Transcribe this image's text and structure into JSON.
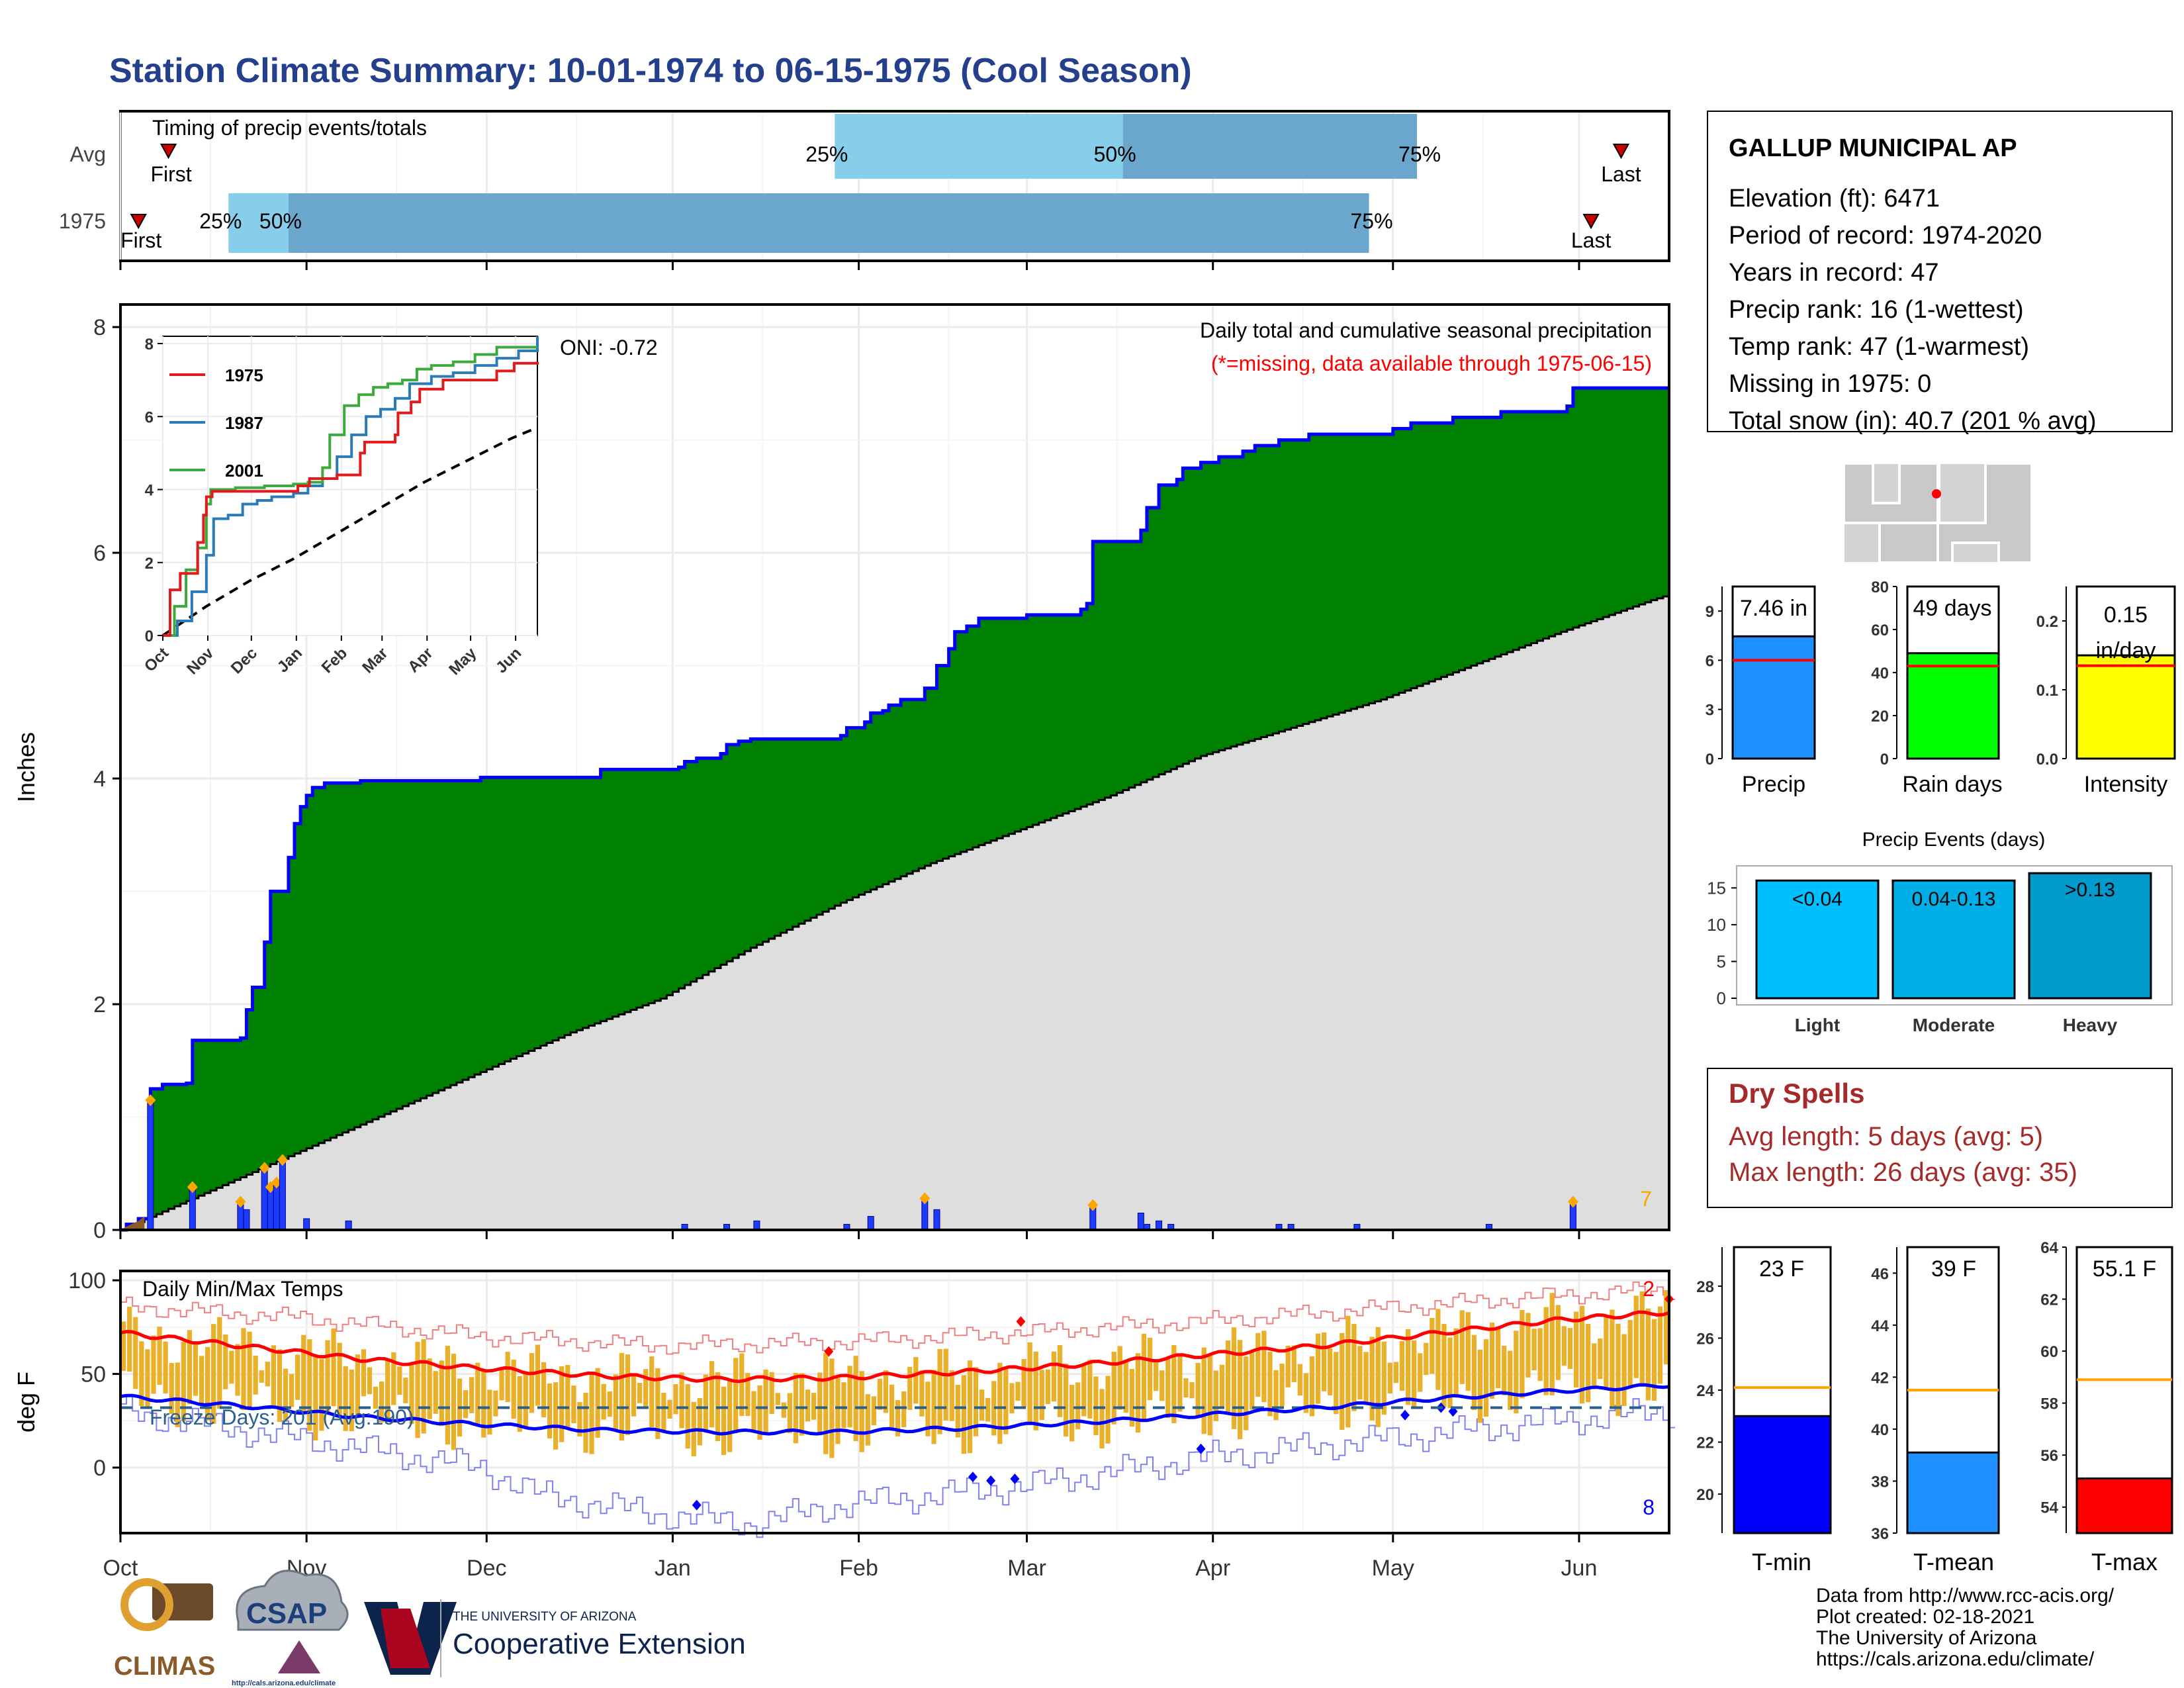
{
  "title": "Station Climate Summary: 10-01-1974 to 06-15-1975 (Cool Season)",
  "colors": {
    "title": "#243F8C",
    "green": "#008000",
    "gray_area": "#DEDEDE",
    "blue_line": "#0000FF",
    "q_light": "#87CEEB",
    "q_dark": "#6BA6CD",
    "red": "#FF0000",
    "orange": "#FFA500",
    "gold": "#EBB02A",
    "dry_red": "#A52A2A"
  },
  "timing": {
    "label": "Timing of precip events/totals",
    "rows": [
      {
        "name": "Avg",
        "first": "First",
        "last": "Last",
        "q25": "25%",
        "q50": "50%",
        "q75": "75%"
      },
      {
        "name": "1975",
        "first": "First",
        "last": "Last",
        "q25": "25%",
        "q50": "50%",
        "q75": "75%"
      }
    ]
  },
  "precip_panel": {
    "ylabel": "Inches",
    "yticks": [
      "0",
      "2",
      "4",
      "6",
      "8"
    ],
    "oni": "ONI: -0.72",
    "legend_line1": "Daily total and cumulative seasonal precipitation",
    "legend_line2": "(*=missing, data available through 1975-06-15)",
    "corner_count": "7",
    "inset": {
      "series": [
        "1975",
        "1987",
        "2001"
      ],
      "yticks": [
        "0",
        "2",
        "4",
        "6",
        "8"
      ],
      "xticks": [
        "Oct",
        "Nov",
        "Dec",
        "Jan",
        "Feb",
        "Mar",
        "Apr",
        "May",
        "Jun"
      ]
    }
  },
  "temp_panel": {
    "ylabel": "deg F",
    "yticks": [
      "0",
      "50",
      "100"
    ],
    "title": "Daily Min/Max Temps",
    "freeze": "Freeze Days: 201 (Avg:190)",
    "top_count": "2",
    "bottom_count": "8"
  },
  "months": [
    "Oct",
    "Nov",
    "Dec",
    "Jan",
    "Feb",
    "Mar",
    "Apr",
    "May",
    "Jun"
  ],
  "station": {
    "name": "GALLUP MUNICIPAL AP",
    "lines": [
      "Elevation (ft): 6471",
      "Period of record: 1974-2020",
      "Years in record: 47",
      "Precip rank: 16 (1-wettest)",
      "Temp rank: 47 (1-warmest)",
      "Missing in 1975: 0",
      "Total snow (in): 40.7 (201 % avg)"
    ]
  },
  "summary_bars": [
    {
      "label": "Precip",
      "value_text": "7.46 in",
      "yticks": [
        "0",
        "3",
        "6",
        "9"
      ]
    },
    {
      "label": "Rain days",
      "value_text": "49 days",
      "yticks": [
        "0",
        "20",
        "40",
        "60",
        "80"
      ]
    },
    {
      "label": "Intensity",
      "value_text1": "0.15",
      "value_text2": "in/day",
      "yticks": [
        "0.0",
        "0.1",
        "0.2"
      ]
    }
  ],
  "events": {
    "title": "Precip Events (days)",
    "yticks": [
      "0",
      "5",
      "10",
      "15"
    ],
    "bars": [
      {
        "label": "Light",
        "range": "<0.04"
      },
      {
        "label": "Moderate",
        "range": "0.04-0.13"
      },
      {
        "label": "Heavy",
        "range": ">0.13"
      }
    ]
  },
  "dry_spells": {
    "title": "Dry Spells",
    "avg": "Avg length: 5 days (avg: 5)",
    "max": "Max length: 26 days (avg: 35)"
  },
  "temp_bars": [
    {
      "label": "T-min",
      "value_text": "23 F",
      "yticks": [
        "20",
        "22",
        "24",
        "26",
        "28"
      ]
    },
    {
      "label": "T-mean",
      "value_text": "39 F",
      "yticks": [
        "36",
        "38",
        "40",
        "42",
        "44",
        "46"
      ]
    },
    {
      "label": "T-max",
      "value_text": "55.1 F",
      "yticks": [
        "54",
        "56",
        "58",
        "60",
        "62",
        "64"
      ]
    }
  ],
  "footer": [
    "Data from http://www.rcc-acis.org/",
    "Plot created: 02-18-2021",
    "The University of Arizona",
    "https://cals.arizona.edu/climate/"
  ],
  "logos": {
    "climas": "CLIMAS",
    "csap": "CSAP",
    "csap_url": "http://cals.arizona.edu/climate",
    "ua_small": "THE UNIVERSITY OF ARIZONA",
    "ua_big": "Cooperative Extension"
  },
  "chart_data": [
    {
      "type": "bar",
      "name": "timing",
      "x_unit": "day of season",
      "rows": [
        {
          "name": "Avg",
          "first": 8,
          "q25": 119,
          "q50": 167,
          "q75": 216,
          "last": 250
        },
        {
          "name": "1975",
          "first": 3,
          "q25": 18,
          "q50": 28,
          "q75": 208,
          "last": 245
        }
      ]
    },
    {
      "type": "area",
      "name": "cumulative precipitation",
      "ylim": [
        0,
        8.2
      ],
      "avg_cum_points": [
        [
          0,
          0
        ],
        [
          15,
          0.35
        ],
        [
          30,
          0.7
        ],
        [
          45,
          1.05
        ],
        [
          60,
          1.4
        ],
        [
          75,
          1.75
        ],
        [
          90,
          2.05
        ],
        [
          105,
          2.5
        ],
        [
          120,
          2.9
        ],
        [
          135,
          3.25
        ],
        [
          150,
          3.55
        ],
        [
          165,
          3.85
        ],
        [
          180,
          4.2
        ],
        [
          195,
          4.45
        ],
        [
          210,
          4.7
        ],
        [
          225,
          5.0
        ],
        [
          240,
          5.3
        ],
        [
          255,
          5.58
        ],
        [
          258,
          5.63
        ]
      ],
      "cum_1975_steps": [
        [
          0,
          0
        ],
        [
          1,
          0.05
        ],
        [
          3,
          0.1
        ],
        [
          5,
          1.25
        ],
        [
          7,
          1.29
        ],
        [
          11,
          1.3
        ],
        [
          12,
          1.68
        ],
        [
          20,
          1.7
        ],
        [
          21,
          1.95
        ],
        [
          22,
          2.15
        ],
        [
          24,
          2.55
        ],
        [
          25,
          3.0
        ],
        [
          28,
          3.3
        ],
        [
          29,
          3.6
        ],
        [
          30,
          3.75
        ],
        [
          31,
          3.85
        ],
        [
          32,
          3.92
        ],
        [
          34,
          3.96
        ],
        [
          40,
          3.98
        ],
        [
          60,
          4.01
        ],
        [
          80,
          4.08
        ],
        [
          93,
          4.1
        ],
        [
          94,
          4.15
        ],
        [
          96,
          4.18
        ],
        [
          100,
          4.22
        ],
        [
          101,
          4.3
        ],
        [
          103,
          4.33
        ],
        [
          105,
          4.35
        ],
        [
          120,
          4.38
        ],
        [
          121,
          4.45
        ],
        [
          124,
          4.5
        ],
        [
          125,
          4.58
        ],
        [
          127,
          4.6
        ],
        [
          128,
          4.65
        ],
        [
          130,
          4.7
        ],
        [
          134,
          4.8
        ],
        [
          136,
          5.0
        ],
        [
          138,
          5.15
        ],
        [
          139,
          5.3
        ],
        [
          141,
          5.35
        ],
        [
          143,
          5.42
        ],
        [
          151,
          5.45
        ],
        [
          160,
          5.5
        ],
        [
          161,
          5.55
        ],
        [
          162,
          6.1
        ],
        [
          170,
          6.2
        ],
        [
          171,
          6.4
        ],
        [
          173,
          6.6
        ],
        [
          176,
          6.65
        ],
        [
          177,
          6.75
        ],
        [
          180,
          6.8
        ],
        [
          183,
          6.85
        ],
        [
          187,
          6.9
        ],
        [
          189,
          6.95
        ],
        [
          193,
          7.0
        ],
        [
          198,
          7.05
        ],
        [
          212,
          7.1
        ],
        [
          215,
          7.15
        ],
        [
          222,
          7.2
        ],
        [
          230,
          7.25
        ],
        [
          241,
          7.3
        ],
        [
          242,
          7.46
        ],
        [
          258,
          7.46
        ]
      ],
      "daily_1975": [
        [
          5,
          1.15
        ],
        [
          12,
          0.38
        ],
        [
          20,
          0.25
        ],
        [
          21,
          0.18
        ],
        [
          24,
          0.55
        ],
        [
          25,
          0.38
        ],
        [
          26,
          0.42
        ],
        [
          27,
          0.62
        ],
        [
          31,
          0.1
        ],
        [
          38,
          0.08
        ],
        [
          94,
          0.05
        ],
        [
          101,
          0.05
        ],
        [
          106,
          0.08
        ],
        [
          121,
          0.05
        ],
        [
          125,
          0.12
        ],
        [
          134,
          0.28
        ],
        [
          136,
          0.18
        ],
        [
          162,
          0.22
        ],
        [
          170,
          0.15
        ],
        [
          171,
          0.05
        ],
        [
          173,
          0.08
        ],
        [
          175,
          0.05
        ],
        [
          193,
          0.05
        ],
        [
          195,
          0.05
        ],
        [
          206,
          0.05
        ],
        [
          228,
          0.05
        ],
        [
          242,
          0.25
        ]
      ],
      "inset": {
        "xlim": [
          0,
          258
        ],
        "ylim": [
          0,
          8.2
        ],
        "1975": [
          [
            0,
            0
          ],
          [
            5,
            1.25
          ],
          [
            12,
            1.7
          ],
          [
            24,
            2.55
          ],
          [
            28,
            3.3
          ],
          [
            30,
            3.8
          ],
          [
            34,
            3.95
          ],
          [
            93,
            4.1
          ],
          [
            101,
            4.3
          ],
          [
            120,
            4.4
          ],
          [
            136,
            5.0
          ],
          [
            139,
            5.3
          ],
          [
            160,
            5.5
          ],
          [
            162,
            6.1
          ],
          [
            171,
            6.4
          ],
          [
            177,
            6.75
          ],
          [
            193,
            7.0
          ],
          [
            230,
            7.25
          ],
          [
            242,
            7.46
          ],
          [
            258,
            7.5
          ]
        ],
        "1987": [
          [
            0,
            0
          ],
          [
            10,
            0.4
          ],
          [
            20,
            1.2
          ],
          [
            30,
            2.2
          ],
          [
            35,
            3.2
          ],
          [
            45,
            3.3
          ],
          [
            55,
            3.6
          ],
          [
            65,
            3.7
          ],
          [
            75,
            3.8
          ],
          [
            90,
            3.9
          ],
          [
            100,
            4.1
          ],
          [
            110,
            4.3
          ],
          [
            120,
            4.9
          ],
          [
            130,
            5.5
          ],
          [
            140,
            6.0
          ],
          [
            150,
            6.2
          ],
          [
            160,
            6.5
          ],
          [
            170,
            6.9
          ],
          [
            185,
            7.1
          ],
          [
            200,
            7.2
          ],
          [
            215,
            7.4
          ],
          [
            230,
            7.6
          ],
          [
            245,
            7.8
          ],
          [
            258,
            8.2
          ]
        ],
        "2001": [
          [
            0,
            0
          ],
          [
            8,
            0.8
          ],
          [
            16,
            1.8
          ],
          [
            24,
            2.4
          ],
          [
            30,
            3.6
          ],
          [
            33,
            4.0
          ],
          [
            50,
            4.05
          ],
          [
            70,
            4.1
          ],
          [
            90,
            4.15
          ],
          [
            100,
            4.2
          ],
          [
            110,
            4.6
          ],
          [
            115,
            5.5
          ],
          [
            125,
            6.3
          ],
          [
            135,
            6.6
          ],
          [
            145,
            6.8
          ],
          [
            155,
            6.9
          ],
          [
            165,
            7.0
          ],
          [
            175,
            7.3
          ],
          [
            185,
            7.4
          ],
          [
            200,
            7.5
          ],
          [
            215,
            7.7
          ],
          [
            230,
            7.9
          ],
          [
            258,
            7.9
          ]
        ],
        "avg": [
          [
            0,
            0
          ],
          [
            30,
            0.8
          ],
          [
            60,
            1.5
          ],
          [
            90,
            2.1
          ],
          [
            120,
            2.8
          ],
          [
            150,
            3.5
          ],
          [
            180,
            4.2
          ],
          [
            210,
            4.8
          ],
          [
            240,
            5.4
          ],
          [
            258,
            5.7
          ]
        ]
      }
    },
    {
      "type": "line",
      "name": "daily temperatures",
      "ylim": [
        -35,
        105
      ],
      "freeze_line": 32,
      "avg_max_points": [
        [
          0,
          72
        ],
        [
          20,
          65
        ],
        [
          40,
          58
        ],
        [
          60,
          53
        ],
        [
          80,
          49
        ],
        [
          100,
          47
        ],
        [
          120,
          48
        ],
        [
          140,
          51
        ],
        [
          160,
          55
        ],
        [
          180,
          60
        ],
        [
          200,
          65
        ],
        [
          220,
          72
        ],
        [
          240,
          79
        ],
        [
          258,
          83
        ]
      ],
      "avg_min_points": [
        [
          0,
          38
        ],
        [
          20,
          33
        ],
        [
          40,
          27
        ],
        [
          60,
          23
        ],
        [
          80,
          20
        ],
        [
          100,
          19
        ],
        [
          120,
          19
        ],
        [
          140,
          21
        ],
        [
          160,
          24
        ],
        [
          180,
          28
        ],
        [
          200,
          32
        ],
        [
          220,
          37
        ],
        [
          240,
          41
        ],
        [
          258,
          44
        ]
      ],
      "record_high_points": [
        [
          0,
          86
        ],
        [
          30,
          80
        ],
        [
          60,
          70
        ],
        [
          90,
          65
        ],
        [
          120,
          67
        ],
        [
          150,
          72
        ],
        [
          180,
          78
        ],
        [
          210,
          85
        ],
        [
          240,
          92
        ],
        [
          258,
          95
        ]
      ],
      "record_low_points": [
        [
          0,
          30
        ],
        [
          30,
          15
        ],
        [
          60,
          0
        ],
        [
          70,
          -15
        ],
        [
          90,
          -25
        ],
        [
          105,
          -30
        ],
        [
          120,
          -20
        ],
        [
          150,
          -10
        ],
        [
          180,
          5
        ],
        [
          210,
          15
        ],
        [
          240,
          25
        ],
        [
          258,
          30
        ]
      ]
    },
    {
      "type": "bar",
      "name": "season totals",
      "categories": [
        "Precip",
        "Rain days",
        "Intensity"
      ],
      "values": [
        7.46,
        49,
        0.15
      ],
      "averages": [
        6.0,
        43,
        0.135
      ],
      "ylims": [
        [
          0,
          10.5
        ],
        [
          0,
          80
        ],
        [
          0,
          0.25
        ]
      ]
    },
    {
      "type": "bar",
      "name": "Precip Events (days)",
      "categories": [
        "Light",
        "Moderate",
        "Heavy"
      ],
      "values": [
        16,
        16,
        17
      ],
      "ylim": [
        0,
        18
      ]
    },
    {
      "type": "bar",
      "name": "seasonal temperatures",
      "categories": [
        "T-min",
        "T-mean",
        "T-max"
      ],
      "values": [
        23,
        39.1,
        55.1
      ],
      "averages": [
        24.1,
        41.5,
        58.9
      ],
      "ylims": [
        [
          18.5,
          29.5
        ],
        [
          36,
          47
        ],
        [
          53,
          64
        ]
      ]
    }
  ]
}
